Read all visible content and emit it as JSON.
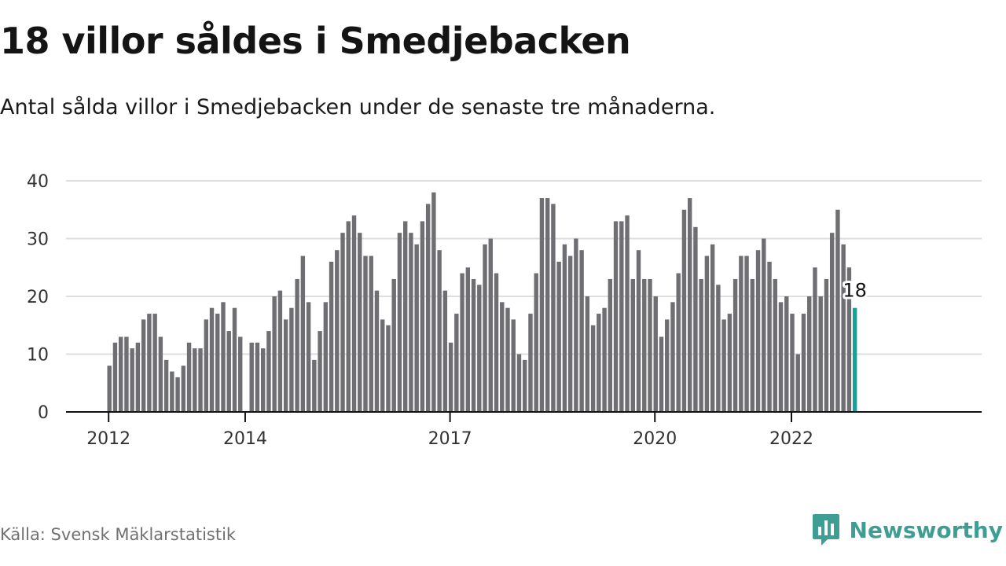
{
  "title": "18 villor såldes i Smedjebacken",
  "subtitle": "Antal sålda villor i Smedjebacken under de senaste tre månaderna.",
  "source": "Källa: Svensk Mäklarstatistik",
  "brand": {
    "name": "Newsworthy",
    "icon": "newsworthy-logo-icon",
    "color": "#3f9e93"
  },
  "colors": {
    "bar": "#6e6e73",
    "highlight": "#12a39a",
    "grid": "#dedede",
    "axis": "#111111"
  },
  "chart_data": {
    "type": "bar",
    "title": "18 villor såldes i Smedjebacken",
    "subtitle": "Antal sålda villor i Smedjebacken under de senaste tre månaderna.",
    "xlabel": "",
    "ylabel": "",
    "ylim": [
      0,
      40
    ],
    "yticks": [
      0,
      10,
      20,
      30,
      40
    ],
    "xtick_labels": [
      {
        "label": "2012",
        "index": 0
      },
      {
        "label": "2014",
        "index": 24
      },
      {
        "label": "2017",
        "index": 60
      },
      {
        "label": "2020",
        "index": 96
      },
      {
        "label": "2022",
        "index": 120
      }
    ],
    "grid": true,
    "legend": "none",
    "highlight_index": 131,
    "highlight_label": "18",
    "values": [
      8,
      12,
      13,
      13,
      11,
      12,
      16,
      17,
      17,
      13,
      9,
      7,
      6,
      8,
      12,
      11,
      11,
      16,
      18,
      17,
      19,
      14,
      18,
      13,
      null,
      12,
      12,
      11,
      14,
      20,
      21,
      16,
      18,
      23,
      27,
      19,
      9,
      14,
      19,
      26,
      28,
      31,
      33,
      34,
      31,
      27,
      27,
      21,
      16,
      15,
      23,
      31,
      33,
      31,
      29,
      33,
      36,
      38,
      28,
      21,
      12,
      17,
      24,
      25,
      23,
      22,
      29,
      30,
      24,
      19,
      18,
      16,
      10,
      9,
      17,
      24,
      37,
      37,
      36,
      26,
      29,
      27,
      30,
      28,
      20,
      15,
      17,
      18,
      23,
      33,
      33,
      34,
      23,
      28,
      23,
      23,
      20,
      13,
      16,
      19,
      24,
      35,
      37,
      32,
      23,
      27,
      29,
      22,
      16,
      17,
      23,
      27,
      27,
      23,
      28,
      30,
      26,
      23,
      19,
      20,
      17,
      10,
      17,
      20,
      25,
      20,
      23,
      31,
      35,
      29,
      25,
      18
    ]
  }
}
